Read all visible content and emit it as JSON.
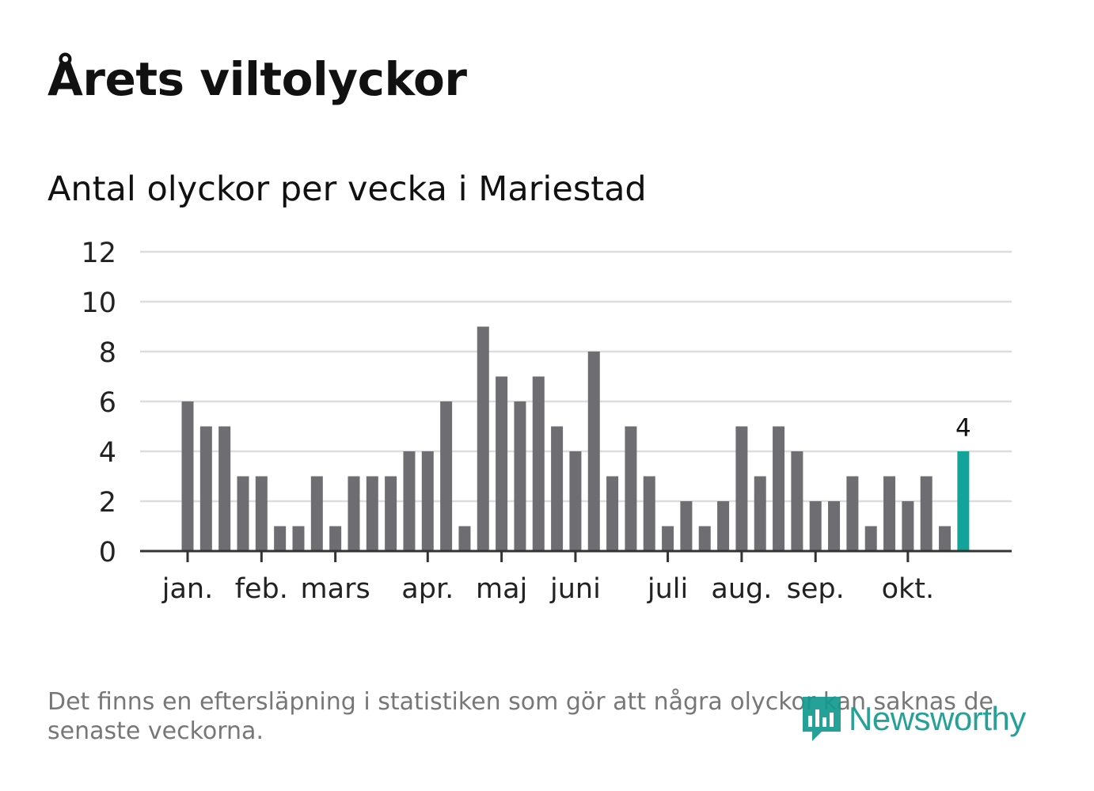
{
  "title": "Årets viltolyckor",
  "subtitle": "Antal olyckor per vecka i Mariestad",
  "footnote": "Det finns en eftersläpning i statistiken som gör att några olyckor kan saknas de senaste veckorna.",
  "logo": {
    "text": "Newsworthy",
    "icon": "newsworthy-logo-icon"
  },
  "colors": {
    "bar": "#6e6d72",
    "highlight": "#12a49a",
    "grid": "#dddddd",
    "axis": "#333333"
  },
  "chart_data": {
    "type": "bar",
    "title": "Antal olyckor per vecka i Mariestad",
    "xlabel": "",
    "ylabel": "",
    "ylim": [
      0,
      12
    ],
    "yticks": [
      "0",
      "2",
      "4",
      "6",
      "8",
      "10",
      "12"
    ],
    "month_labels": [
      {
        "label": "jan.",
        "week": 0
      },
      {
        "label": "feb.",
        "week": 4
      },
      {
        "label": "mars",
        "week": 8
      },
      {
        "label": "apr.",
        "week": 13
      },
      {
        "label": "maj",
        "week": 17
      },
      {
        "label": "juni",
        "week": 21
      },
      {
        "label": "juli",
        "week": 26
      },
      {
        "label": "aug.",
        "week": 30
      },
      {
        "label": "sep.",
        "week": 34
      },
      {
        "label": "okt.",
        "week": 39
      }
    ],
    "values": [
      6,
      5,
      5,
      3,
      3,
      1,
      1,
      3,
      1,
      3,
      3,
      3,
      4,
      4,
      6,
      1,
      9,
      7,
      6,
      7,
      5,
      4,
      8,
      3,
      5,
      3,
      1,
      2,
      1,
      2,
      5,
      3,
      5,
      4,
      2,
      2,
      3,
      1,
      3,
      2,
      3,
      1,
      4
    ],
    "highlight_index": 42,
    "highlight_label": "4"
  }
}
